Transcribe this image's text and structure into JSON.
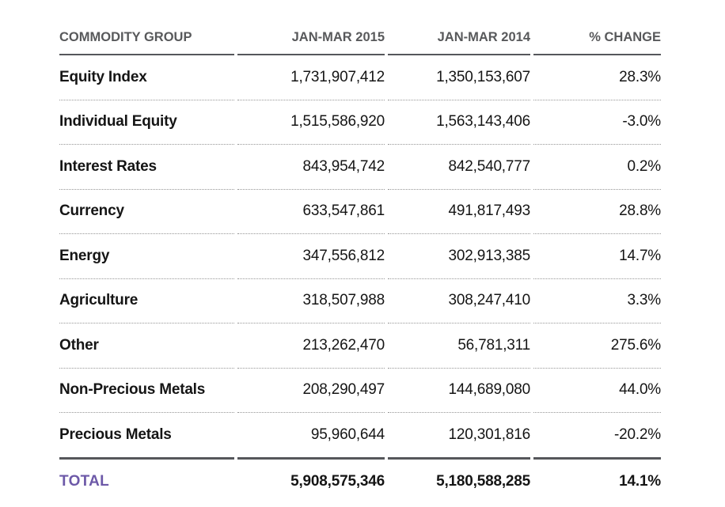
{
  "colors": {
    "accent_purple": "#6d59a8",
    "header_gray": "#58595b",
    "rule_dark": "#56575b",
    "dot_gray": "#969696",
    "text_black": "#151515"
  },
  "chart_data": {
    "type": "table",
    "columns": [
      "COMMODITY GROUP",
      "JAN-MAR 2015",
      "JAN-MAR 2014",
      "% CHANGE"
    ],
    "rows": [
      [
        "Equity Index",
        "1,731,907,412",
        "1,350,153,607",
        "28.3%"
      ],
      [
        "Individual Equity",
        "1,515,586,920",
        "1,563,143,406",
        "-3.0%"
      ],
      [
        "Interest Rates",
        "843,954,742",
        "842,540,777",
        "0.2%"
      ],
      [
        "Currency",
        "633,547,861",
        "491,817,493",
        "28.8%"
      ],
      [
        "Energy",
        "347,556,812",
        "302,913,385",
        "14.7%"
      ],
      [
        "Agriculture",
        "318,507,988",
        "308,247,410",
        "3.3%"
      ],
      [
        "Other",
        "213,262,470",
        "56,781,311",
        "275.6%"
      ],
      [
        "Non-Precious Metals",
        "208,290,497",
        "144,689,080",
        "44.0%"
      ],
      [
        "Precious Metals",
        "95,960,644",
        "120,301,816",
        "-20.2%"
      ]
    ],
    "total_row": [
      "TOTAL",
      "5,908,575,346",
      "5,180,588,285",
      "14.1%"
    ]
  }
}
